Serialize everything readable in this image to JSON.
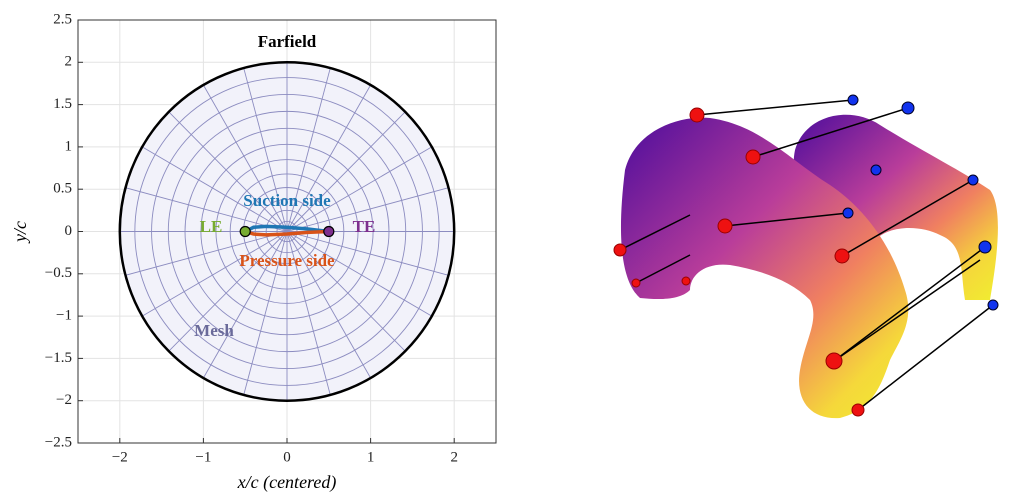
{
  "chart_data": {
    "type": "mesh",
    "xlabel": "x/c (centered)",
    "ylabel": "y/c",
    "xlim": [
      -2.5,
      2.5
    ],
    "ylim": [
      -2.5,
      2.5
    ],
    "xticks": [
      {
        "value": -2,
        "label": "−2"
      },
      {
        "value": -1,
        "label": "−1"
      },
      0,
      1,
      2
    ],
    "yticks": [
      {
        "value": -2.5,
        "label": "−2.5"
      },
      {
        "value": -2,
        "label": "−2"
      },
      {
        "value": -1.5,
        "label": "−1.5"
      },
      {
        "value": -1,
        "label": "−1"
      },
      {
        "value": -0.5,
        "label": "−0.5"
      },
      0,
      0.5,
      1,
      1.5,
      2,
      2.5
    ],
    "grid": true,
    "farfield": {
      "label": "Farfield",
      "radius": 2,
      "color": "#000000"
    },
    "mesh": {
      "label": "Mesh",
      "color": "#8c8cc0",
      "fill": "#f2f2fa",
      "radii": [
        0.12,
        0.25,
        0.38,
        0.52,
        0.68,
        0.85,
        1.03,
        1.22,
        1.42,
        1.62,
        1.82
      ],
      "spokes": 24
    },
    "series": [
      {
        "name": "Suction side",
        "color": "#1f77b4",
        "x": [
          -0.5,
          -0.4,
          -0.25,
          0,
          0.25,
          0.5
        ],
        "values": [
          0,
          0.05,
          0.06,
          0.05,
          0.03,
          0
        ]
      },
      {
        "name": "Pressure side",
        "color": "#d95319",
        "x": [
          -0.5,
          -0.4,
          -0.25,
          0,
          0.25,
          0.5
        ],
        "values": [
          0,
          -0.03,
          -0.04,
          -0.03,
          -0.01,
          0
        ]
      }
    ],
    "points": [
      {
        "name": "LE",
        "color": "#77ac30",
        "x": -0.5,
        "y": 0
      },
      {
        "name": "TE",
        "color": "#7e2f8e",
        "x": 0.5,
        "y": 0
      }
    ]
  }
}
